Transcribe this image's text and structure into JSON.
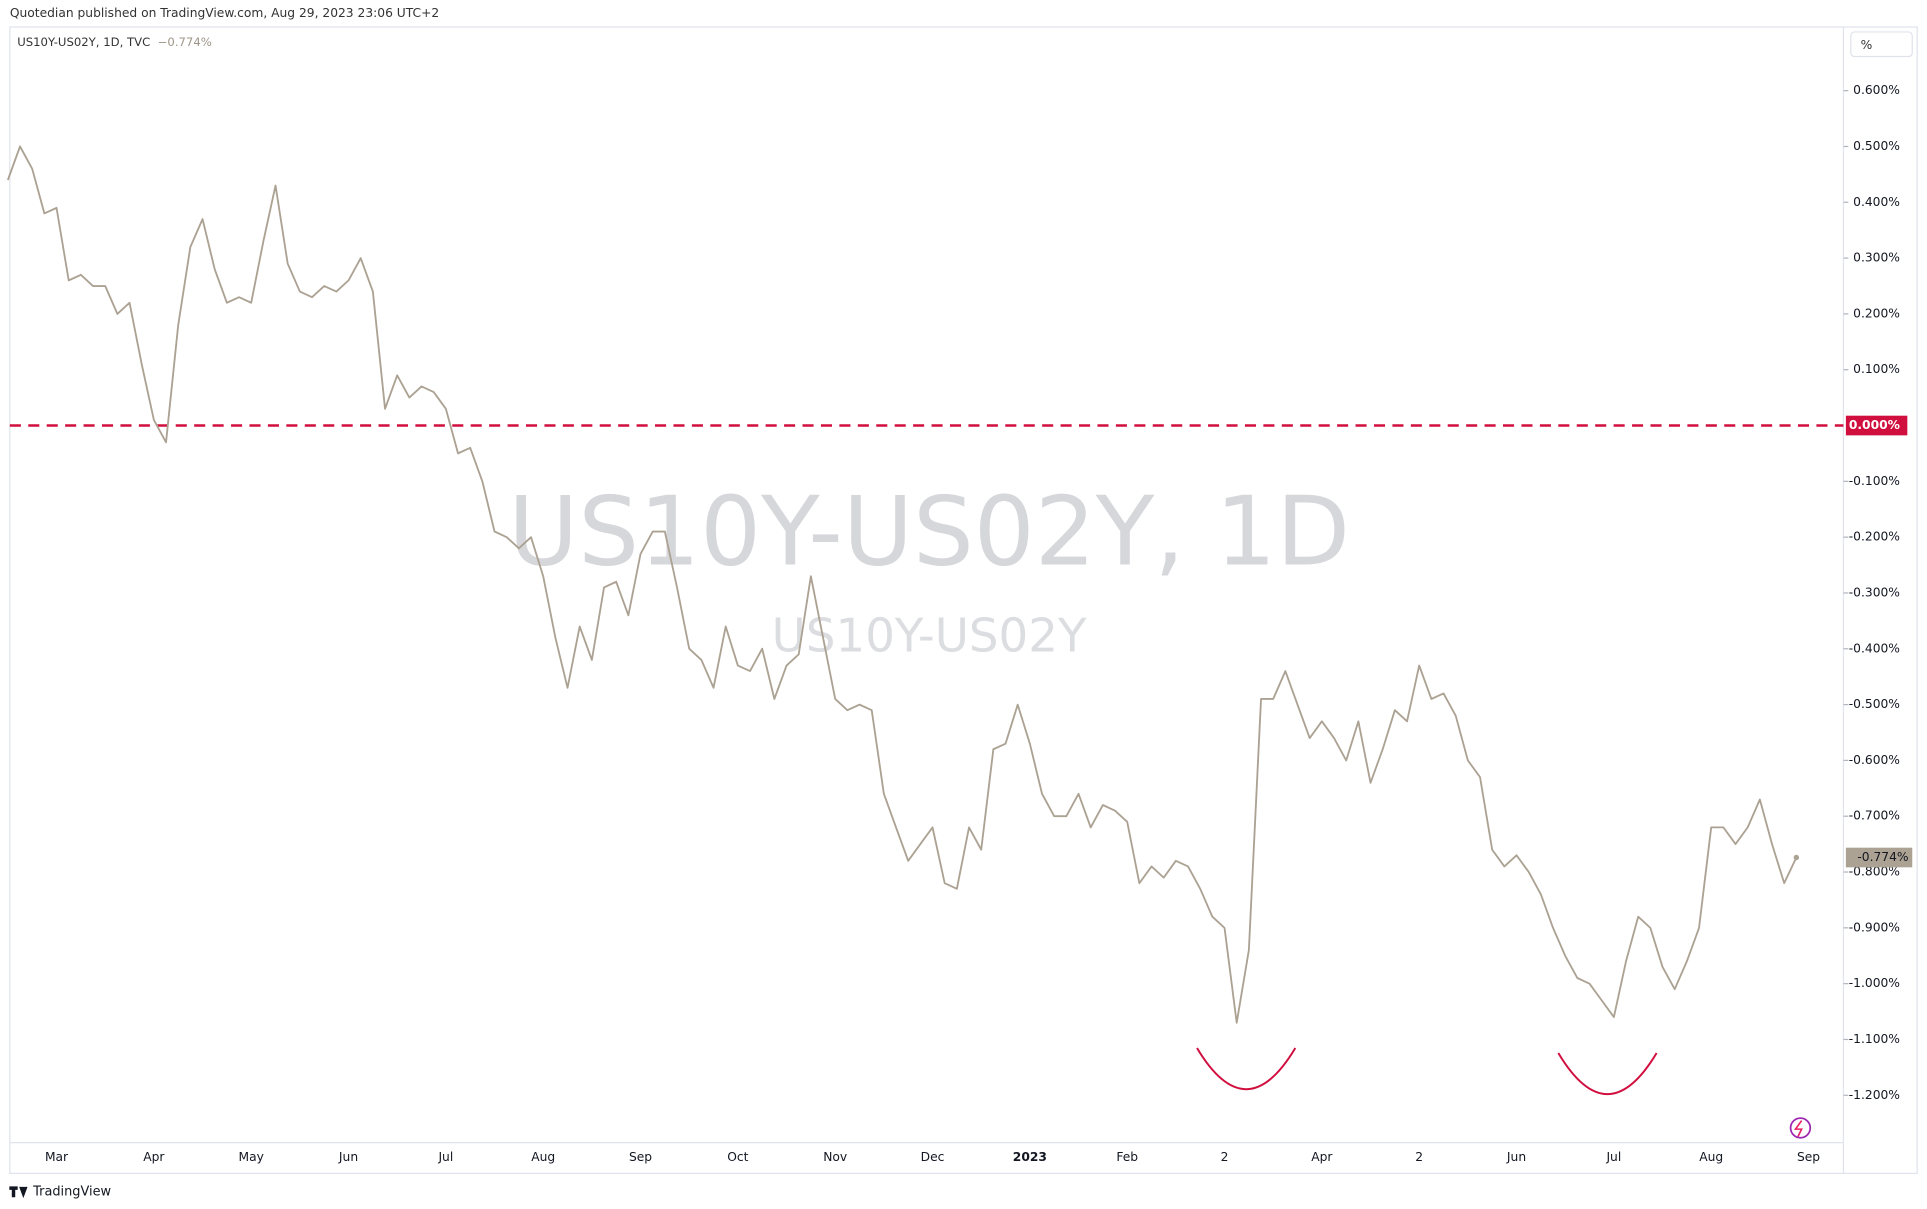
{
  "header": {
    "publisher": "Quotedian published on TradingView.com, Aug 29, 2023 23:06 UTC+2",
    "unit_button": "%",
    "brand": "TradingView"
  },
  "chart_data": {
    "type": "line",
    "symbol_line": "US10Y-US02Y, 1D, TVC",
    "watermark": "US10Y-US02Y, 1D",
    "categories": [
      null,
      null,
      null,
      null,
      "Mar",
      null,
      null,
      null,
      null,
      null,
      null,
      null,
      "Apr",
      null,
      null,
      null,
      null,
      null,
      null,
      null,
      "May",
      null,
      null,
      null,
      null,
      null,
      null,
      null,
      "Jun",
      null,
      null,
      null,
      null,
      null,
      null,
      null,
      "Jul",
      null,
      null,
      null,
      null,
      null,
      null,
      null,
      "Aug",
      null,
      null,
      null,
      null,
      null,
      null,
      null,
      "Sep",
      null,
      null,
      null,
      null,
      null,
      null,
      null,
      "Oct",
      null,
      null,
      null,
      null,
      null,
      null,
      null,
      "Nov",
      null,
      null,
      null,
      null,
      null,
      null,
      null,
      "Dec",
      null,
      null,
      null,
      null,
      null,
      null,
      null,
      "2023",
      null,
      null,
      null,
      null,
      null,
      null,
      null,
      "Feb",
      null,
      null,
      null,
      null,
      null,
      null,
      null,
      "2",
      null,
      null,
      null,
      null,
      null,
      null,
      null,
      "Apr",
      null,
      null,
      null,
      null,
      null,
      null,
      null,
      "2",
      null,
      null,
      null,
      null,
      null,
      null,
      null,
      "Jun",
      null,
      null,
      null,
      null,
      null,
      null,
      null,
      "Jul",
      null,
      null,
      null,
      null,
      null,
      null,
      null,
      "Aug",
      null,
      null,
      null,
      null,
      null,
      null,
      null,
      "Sep"
    ],
    "series": [
      {
        "name": "US10Y-US02Y",
        "color": "#aca293",
        "last_label": "−0.774%",
        "tag_label": "-0.774%",
        "values": [
          0.44,
          0.5,
          0.46,
          0.38,
          0.39,
          0.26,
          0.27,
          0.25,
          0.25,
          0.2,
          0.22,
          0.11,
          0.01,
          -0.03,
          0.18,
          0.32,
          0.37,
          0.28,
          0.22,
          0.23,
          0.22,
          0.33,
          0.43,
          0.29,
          0.24,
          0.23,
          0.25,
          0.24,
          0.26,
          0.3,
          0.24,
          0.03,
          0.09,
          0.05,
          0.07,
          0.06,
          0.03,
          -0.05,
          -0.04,
          -0.1,
          -0.19,
          -0.2,
          -0.22,
          -0.2,
          -0.27,
          -0.38,
          -0.47,
          -0.36,
          -0.42,
          -0.29,
          -0.28,
          -0.34,
          -0.23,
          -0.19,
          -0.19,
          -0.29,
          -0.4,
          -0.42,
          -0.47,
          -0.36,
          -0.43,
          -0.44,
          -0.4,
          -0.49,
          -0.43,
          -0.41,
          -0.27,
          -0.38,
          -0.49,
          -0.51,
          -0.5,
          -0.51,
          -0.66,
          -0.72,
          -0.78,
          -0.75,
          -0.72,
          -0.82,
          -0.83,
          -0.72,
          -0.76,
          -0.58,
          -0.57,
          -0.5,
          -0.57,
          -0.66,
          -0.7,
          -0.7,
          -0.66,
          -0.72,
          -0.68,
          -0.69,
          -0.71,
          -0.82,
          -0.79,
          -0.81,
          -0.78,
          -0.79,
          -0.83,
          -0.88,
          -0.9,
          -1.07,
          -0.94,
          -0.49,
          -0.49,
          -0.44,
          -0.5,
          -0.56,
          -0.53,
          -0.56,
          -0.6,
          -0.53,
          -0.64,
          -0.58,
          -0.51,
          -0.53,
          -0.43,
          -0.49,
          -0.48,
          -0.52,
          -0.6,
          -0.63,
          -0.76,
          -0.79,
          -0.77,
          -0.8,
          -0.84,
          -0.9,
          -0.95,
          -0.99,
          -1.0,
          -1.03,
          -1.06,
          -0.96,
          -0.88,
          -0.9,
          -0.97,
          -1.01,
          -0.96,
          -0.9,
          -0.72,
          -0.72,
          -0.75,
          -0.72,
          -0.67,
          -0.75,
          -0.82,
          -0.774,
          null
        ]
      }
    ],
    "ylim": [
      -1.2849,
      0.714
    ],
    "yticks": [
      {
        "value": 0.6,
        "label": "0.600%"
      },
      {
        "value": 0.5,
        "label": "0.500%"
      },
      {
        "value": 0.4,
        "label": "0.400%"
      },
      {
        "value": 0.3,
        "label": "0.300%"
      },
      {
        "value": 0.2,
        "label": "0.200%"
      },
      {
        "value": 0.1,
        "label": "0.100%"
      },
      {
        "value": -0.1,
        "label": "-0.100%"
      },
      {
        "value": -0.2,
        "label": "-0.200%"
      },
      {
        "value": -0.3,
        "label": "-0.300%"
      },
      {
        "value": -0.4,
        "label": "-0.400%"
      },
      {
        "value": -0.5,
        "label": "-0.500%"
      },
      {
        "value": -0.6,
        "label": "-0.600%"
      },
      {
        "value": -0.7,
        "label": "-0.700%"
      },
      {
        "value": -0.8,
        "label": "-0.800%"
      },
      {
        "value": -0.9,
        "label": "-0.900%"
      },
      {
        "value": -1.0,
        "label": "-1.000%"
      },
      {
        "value": -1.1,
        "label": "-1.100%"
      },
      {
        "value": -1.2,
        "label": "-1.200%"
      }
    ],
    "hline": {
      "value": 0,
      "label": "0.000%",
      "color": "#d10f3f"
    },
    "grid": false
  }
}
